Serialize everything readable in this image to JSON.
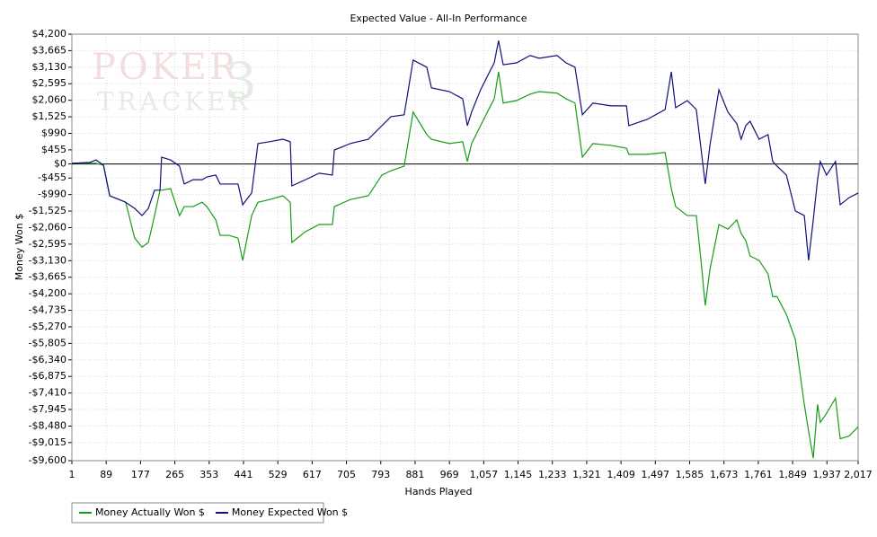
{
  "chart_data": {
    "type": "line",
    "title": "Expected Value - All-In Performance",
    "watermark": [
      "POKER",
      "TRACKER",
      "3"
    ],
    "x_label": "Hands Played",
    "y_label": "Money Won $",
    "x": [
      1,
      47,
      63,
      82,
      98,
      139,
      162,
      181,
      197,
      213,
      227,
      231,
      254,
      277,
      289,
      312,
      335,
      347,
      370,
      381,
      404,
      427,
      439,
      462,
      478,
      508,
      542,
      561,
      565,
      600,
      635,
      669,
      674,
      715,
      761,
      796,
      819,
      853,
      876,
      911,
      923,
      969,
      1003,
      1015,
      1026,
      1049,
      1072,
      1084,
      1095,
      1107,
      1141,
      1176,
      1199,
      1245,
      1268,
      1291,
      1310,
      1337,
      1383,
      1423,
      1429,
      1476,
      1522,
      1538,
      1549,
      1579,
      1602,
      1614,
      1625,
      1637,
      1660,
      1683,
      1706,
      1717,
      1729,
      1740,
      1763,
      1786,
      1798,
      1809,
      1833,
      1856,
      1879,
      1890,
      1902,
      1913,
      1920,
      1936,
      1959,
      1971,
      1994,
      2017
    ],
    "series": [
      {
        "name": "Money Actually Won $",
        "color": "#189c18",
        "values": [
          20,
          20,
          20,
          -40,
          -1030,
          -1240,
          -2400,
          -2690,
          -2540,
          -1670,
          -850,
          -850,
          -800,
          -1670,
          -1380,
          -1380,
          -1240,
          -1380,
          -1810,
          -2310,
          -2310,
          -2400,
          -3120,
          -1670,
          -1240,
          -1150,
          -1030,
          -1240,
          -2540,
          -2190,
          -1960,
          -1960,
          -1380,
          -1150,
          -1030,
          -360,
          -220,
          -70,
          1680,
          950,
          800,
          660,
          720,
          80,
          660,
          1240,
          1820,
          2110,
          2980,
          1970,
          2050,
          2260,
          2340,
          2290,
          2110,
          1970,
          220,
          660,
          600,
          510,
          310,
          310,
          370,
          -800,
          -1380,
          -1670,
          -1670,
          -3120,
          -4580,
          -3420,
          -1960,
          -2110,
          -1810,
          -2250,
          -2480,
          -2980,
          -3120,
          -3560,
          -4290,
          -4290,
          -4870,
          -5680,
          -7780,
          -8650,
          -9520,
          -7780,
          -8360,
          -8070,
          -7580,
          -8890,
          -8800,
          -8510
        ]
      },
      {
        "name": "Money Expected Won $",
        "color": "#10107a",
        "values": [
          20,
          50,
          130,
          -40,
          -1030,
          -1240,
          -1440,
          -1670,
          -1440,
          -850,
          -850,
          220,
          130,
          -70,
          -650,
          -510,
          -510,
          -420,
          -360,
          -650,
          -650,
          -650,
          -1320,
          -940,
          660,
          720,
          800,
          720,
          -710,
          -510,
          -300,
          -360,
          450,
          660,
          800,
          1240,
          1530,
          1590,
          3360,
          3130,
          2460,
          2340,
          2110,
          1240,
          1680,
          2400,
          2980,
          3270,
          3990,
          3210,
          3270,
          3510,
          3420,
          3510,
          3270,
          3130,
          1590,
          1970,
          1880,
          1880,
          1240,
          1440,
          1760,
          2980,
          1820,
          2050,
          1760,
          510,
          -650,
          600,
          2400,
          1680,
          1300,
          800,
          1240,
          1380,
          800,
          950,
          80,
          -70,
          -360,
          -1520,
          -1670,
          -3120,
          -1810,
          -510,
          80,
          -360,
          80,
          -1320,
          -1090,
          -940
        ]
      }
    ],
    "xlim": [
      1,
      2017
    ],
    "xticks": [
      1,
      89,
      177,
      265,
      353,
      441,
      529,
      617,
      705,
      793,
      881,
      969,
      {
        "value": 1057,
        "label": "1,057"
      },
      {
        "value": 1145,
        "label": "1,145"
      },
      {
        "value": 1233,
        "label": "1,233"
      },
      {
        "value": 1321,
        "label": "1,321"
      },
      {
        "value": 1409,
        "label": "1,409"
      },
      {
        "value": 1497,
        "label": "1,497"
      },
      {
        "value": 1585,
        "label": "1,585"
      },
      {
        "value": 1673,
        "label": "1,673"
      },
      {
        "value": 1761,
        "label": "1,761"
      },
      {
        "value": 1849,
        "label": "1,849"
      },
      {
        "value": 1937,
        "label": "1,937"
      },
      {
        "value": 2017,
        "label": "2,017"
      }
    ],
    "ylim": [
      -9600,
      4200
    ],
    "yticks": [
      {
        "value": 4200,
        "label": "$4,200"
      },
      {
        "value": 3665,
        "label": "$3,665"
      },
      {
        "value": 3130,
        "label": "$3,130"
      },
      {
        "value": 2595,
        "label": "$2,595"
      },
      {
        "value": 2060,
        "label": "$2,060"
      },
      {
        "value": 1525,
        "label": "$1,525"
      },
      {
        "value": 990,
        "label": "$990"
      },
      {
        "value": 455,
        "label": "$455"
      },
      {
        "value": 0,
        "label": "$0"
      },
      {
        "value": -455,
        "label": "-$455"
      },
      {
        "value": -990,
        "label": "-$990"
      },
      {
        "value": -1525,
        "label": "-$1,525"
      },
      {
        "value": -2060,
        "label": "-$2,060"
      },
      {
        "value": -2595,
        "label": "-$2,595"
      },
      {
        "value": -3130,
        "label": "-$3,130"
      },
      {
        "value": -3665,
        "label": "-$3,665"
      },
      {
        "value": -4200,
        "label": "-$4,200"
      },
      {
        "value": -4735,
        "label": "-$4,735"
      },
      {
        "value": -5270,
        "label": "-$5,270"
      },
      {
        "value": -5805,
        "label": "-$5,805"
      },
      {
        "value": -6340,
        "label": "-$6,340"
      },
      {
        "value": -6875,
        "label": "-$6,875"
      },
      {
        "value": -7410,
        "label": "-$7,410"
      },
      {
        "value": -7945,
        "label": "-$7,945"
      },
      {
        "value": -8480,
        "label": "-$8,480"
      },
      {
        "value": -9015,
        "label": "-$9,015"
      },
      {
        "value": -9600,
        "label": "-$9,600"
      }
    ],
    "grid": true
  }
}
